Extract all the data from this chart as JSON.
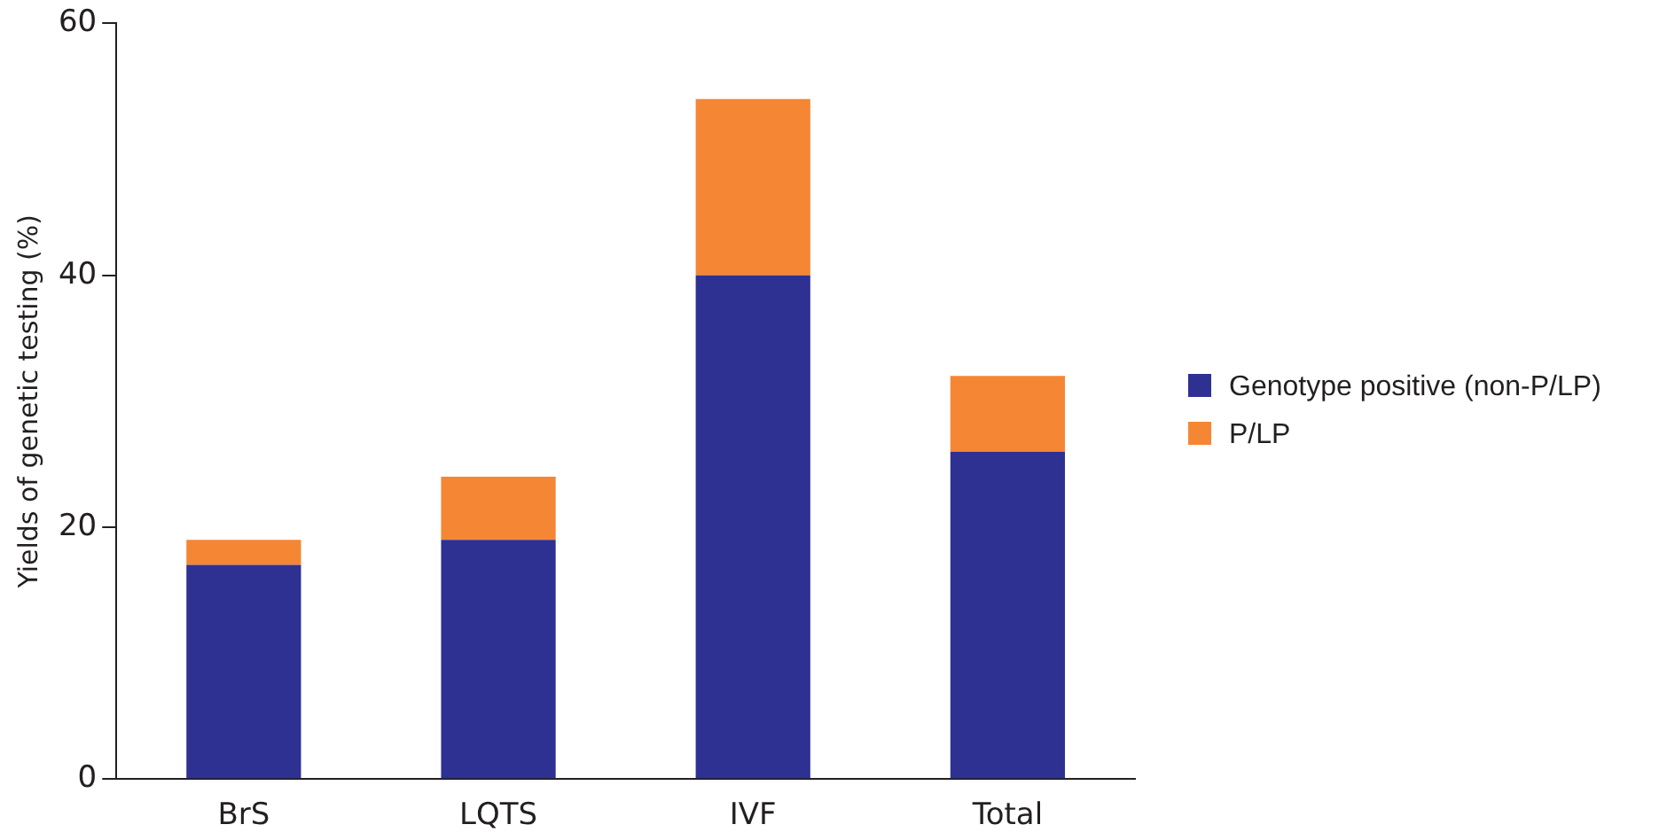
{
  "chart_data": {
    "type": "bar",
    "stacked": true,
    "ylabel": "Yields of genetic testing (%)",
    "categories": [
      "BrS",
      "LQTS",
      "IVF",
      "Total"
    ],
    "series": [
      {
        "name": "Genotype positive (non-P/LP)",
        "color": "#2e3192",
        "values": [
          17,
          19,
          40,
          26
        ]
      },
      {
        "name": "P/LP",
        "color": "#f58634",
        "values": [
          2,
          5,
          14,
          6
        ]
      }
    ],
    "ylim": [
      0,
      60
    ],
    "yticks": [
      0,
      20,
      40,
      60
    ],
    "grid": false,
    "legend": "right"
  }
}
